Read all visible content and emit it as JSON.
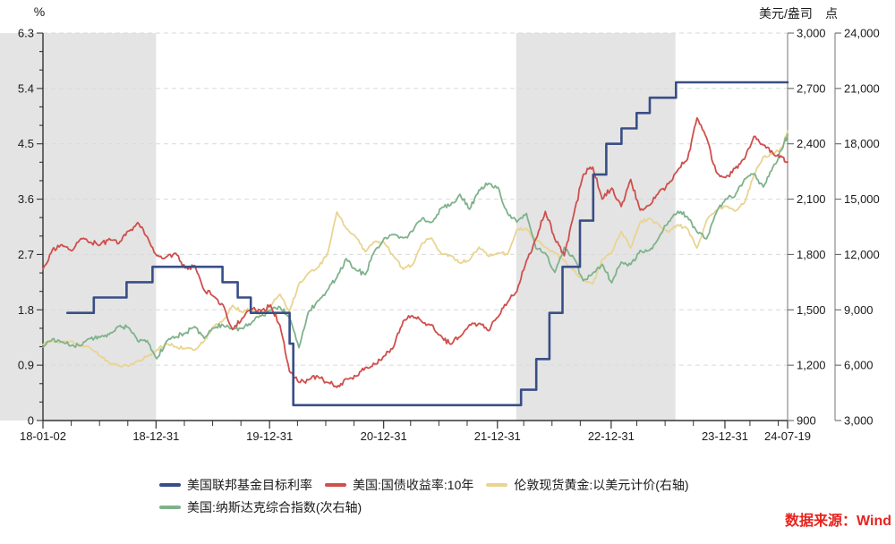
{
  "source_note": {
    "text": "数据来源：Wind",
    "color": "#E8231E"
  },
  "colors": {
    "background": "#FFFFFF",
    "shaded_band": "#E4E4E4",
    "gridline": "#D9D9D9",
    "axis_dark": "#333333",
    "axis_right": "#8C8C8C",
    "tick_text": "#1A1A1A"
  },
  "chart_data": {
    "type": "line",
    "grid": "horizontal-dashed",
    "legend_position": "bottom-left",
    "x_range_years": [
      0,
      6.546
    ],
    "x_ticks": [
      {
        "label": "18-01-02",
        "x": 0
      },
      {
        "label": "18-12-31",
        "x": 0.994
      },
      {
        "label": "19-12-31",
        "x": 1.992
      },
      {
        "label": "20-12-31",
        "x": 2.995
      },
      {
        "label": "21-12-31",
        "x": 3.995
      },
      {
        "label": "22-12-31",
        "x": 4.995
      },
      {
        "label": "23-12-31",
        "x": 5.995
      },
      {
        "label": "24-07-19",
        "x": 6.546
      }
    ],
    "axes": {
      "left": {
        "title": "%",
        "min": 0,
        "max": 6.3,
        "major_step": 0.9,
        "minor_step": 0.3
      },
      "right1": {
        "title": "美元/盎司",
        "min": 900,
        "max": 3000,
        "major_step": 300
      },
      "right2": {
        "title": "点",
        "min": 3000,
        "max": 24000,
        "major_step": 3000
      }
    },
    "shaded_bands": [
      {
        "x0": -0.38,
        "x1": 0.994
      },
      {
        "x0": 4.16,
        "x1": 5.56
      }
    ],
    "legend_rows": [
      [
        0,
        1,
        2
      ],
      [
        3
      ]
    ],
    "series": [
      {
        "id": "fed-funds-target-rate",
        "name": "美国联邦基金目标利率",
        "color": "#394E86",
        "axis": "left",
        "style": "step",
        "points": [
          [
            0.215,
            1.75
          ],
          [
            0.447,
            2.0
          ],
          [
            0.735,
            2.25
          ],
          [
            0.963,
            2.5
          ],
          [
            1.578,
            2.25
          ],
          [
            1.712,
            2.0
          ],
          [
            1.827,
            1.75
          ],
          [
            2.168,
            1.25
          ],
          [
            2.201,
            0.25
          ],
          [
            4.203,
            0.5
          ],
          [
            4.337,
            1.0
          ],
          [
            4.452,
            1.75
          ],
          [
            4.567,
            2.5
          ],
          [
            4.721,
            3.25
          ],
          [
            4.837,
            4.0
          ],
          [
            4.952,
            4.5
          ],
          [
            5.086,
            4.75
          ],
          [
            5.219,
            5.0
          ],
          [
            5.334,
            5.25
          ],
          [
            5.565,
            5.5
          ],
          [
            6.546,
            5.5
          ]
        ]
      },
      {
        "id": "us-10y-treasury-yield",
        "name": "美国:国债收益率:10年",
        "color": "#CE4F4C",
        "axis": "left",
        "style": "line",
        "x_start": 0,
        "x_step_years": 0.08333,
        "values": [
          2.46,
          2.78,
          2.86,
          2.76,
          2.96,
          2.9,
          2.85,
          2.96,
          2.88,
          3.08,
          3.22,
          2.99,
          2.68,
          2.66,
          2.72,
          2.48,
          2.52,
          2.12,
          2.02,
          1.88,
          1.48,
          1.66,
          1.81,
          1.78,
          1.88,
          1.55,
          0.8,
          0.62,
          0.66,
          0.72,
          0.62,
          0.54,
          0.68,
          0.72,
          0.86,
          0.92,
          1.05,
          1.2,
          1.62,
          1.7,
          1.6,
          1.56,
          1.38,
          1.24,
          1.36,
          1.56,
          1.58,
          1.46,
          1.68,
          1.92,
          2.1,
          2.6,
          2.95,
          3.4,
          2.95,
          2.68,
          3.35,
          4.0,
          4.12,
          3.6,
          3.78,
          3.48,
          3.92,
          3.42,
          3.5,
          3.72,
          3.85,
          4.08,
          4.25,
          4.92,
          4.6,
          4.05,
          3.95,
          4.1,
          4.25,
          4.62,
          4.48,
          4.35,
          4.28,
          4.2
        ]
      },
      {
        "id": "london-spot-gold-usd",
        "name": "伦敦现货黄金:以美元计价(右轴)",
        "color": "#E9D491",
        "axis": "right1",
        "style": "line",
        "x_start": 0,
        "x_step_years": 0.08333,
        "values": [
          1312,
          1330,
          1322,
          1330,
          1305,
          1295,
          1250,
          1212,
          1196,
          1195,
          1222,
          1248,
          1282,
          1316,
          1300,
          1290,
          1282,
          1330,
          1410,
          1442,
          1524,
          1488,
          1505,
          1468,
          1520,
          1585,
          1490,
          1640,
          1700,
          1730,
          1800,
          2030,
          1940,
          1895,
          1815,
          1870,
          1865,
          1790,
          1720,
          1745,
          1860,
          1890,
          1805,
          1795,
          1755,
          1770,
          1840,
          1790,
          1810,
          1800,
          1935,
          1940,
          1880,
          1840,
          1810,
          1765,
          1715,
          1660,
          1640,
          1775,
          1810,
          1925,
          1835,
          1975,
          1995,
          1960,
          1920,
          1960,
          1940,
          1835,
          1985,
          2040,
          2063,
          2035,
          2080,
          2230,
          2330,
          2345,
          2380,
          2470
        ]
      },
      {
        "id": "nasdaq-composite",
        "name": "美国:纳斯达克综合指数(次右轴)",
        "color": "#7FB28C",
        "axis": "right2",
        "style": "line",
        "x_start": 0,
        "x_step_years": 0.08333,
        "values": [
          6980,
          7411,
          7273,
          7063,
          7066,
          7442,
          7510,
          7672,
          8109,
          8046,
          7306,
          7331,
          6350,
          7282,
          7533,
          7729,
          8095,
          7453,
          8006,
          8175,
          7963,
          7999,
          8292,
          8665,
          8973,
          9151,
          8567,
          6950,
          8890,
          9490,
          10059,
          10745,
          11775,
          11168,
          10912,
          12199,
          12888,
          13071,
          12900,
          13247,
          13963,
          13749,
          14504,
          14673,
          15259,
          14449,
          15498,
          15850,
          15645,
          14240,
          13751,
          14221,
          12335,
          12081,
          11029,
          12391,
          11816,
          10576,
          10988,
          11468,
          10466,
          11585,
          11456,
          12222,
          12227,
          12935,
          13788,
          14346,
          14035,
          13219,
          12851,
          14226,
          15011,
          15164,
          16092,
          16379,
          15658,
          16735,
          17733,
          18500
        ]
      }
    ]
  }
}
